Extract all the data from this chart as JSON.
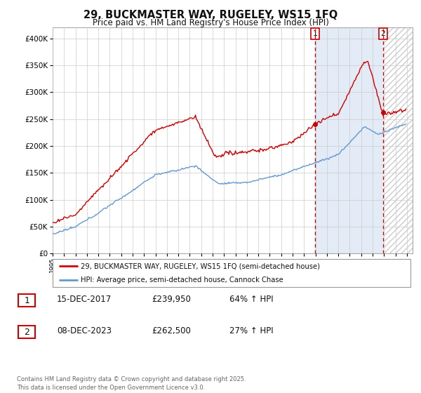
{
  "title1": "29, BUCKMASTER WAY, RUGELEY, WS15 1FQ",
  "title2": "Price paid vs. HM Land Registry's House Price Index (HPI)",
  "legend_line1": "29, BUCKMASTER WAY, RUGELEY, WS15 1FQ (semi-detached house)",
  "legend_line2": "HPI: Average price, semi-detached house, Cannock Chase",
  "table_row1": [
    "1",
    "15-DEC-2017",
    "£239,950",
    "64% ↑ HPI"
  ],
  "table_row2": [
    "2",
    "08-DEC-2023",
    "£262,500",
    "27% ↑ HPI"
  ],
  "footer": "Contains HM Land Registry data © Crown copyright and database right 2025.\nThis data is licensed under the Open Government Licence v3.0.",
  "red_color": "#cc0000",
  "blue_color": "#6699cc",
  "blue_fill_color": "#dde8f5",
  "marker1_year": 2017.958,
  "marker2_year": 2023.917,
  "marker1_value": 239950,
  "marker2_value": 262500,
  "ylim": [
    0,
    420000
  ],
  "xlim_start": 1995.0,
  "xlim_end": 2026.5,
  "background_color": "#ffffff",
  "grid_color": "#cccccc"
}
